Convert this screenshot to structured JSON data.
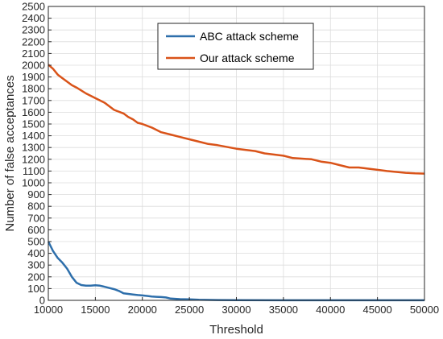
{
  "chart_data": {
    "type": "line",
    "title": "",
    "xlabel": "Threshold",
    "ylabel": "Number of false acceptances",
    "xlim": [
      10000,
      50000
    ],
    "ylim": [
      0,
      2500
    ],
    "xticks": [
      10000,
      15000,
      20000,
      25000,
      30000,
      35000,
      40000,
      45000,
      50000
    ],
    "yticks": [
      0,
      100,
      200,
      300,
      400,
      500,
      600,
      700,
      800,
      900,
      1000,
      1100,
      1200,
      1300,
      1400,
      1500,
      1600,
      1700,
      1800,
      1900,
      2000,
      2100,
      2200,
      2300,
      2400,
      2500
    ],
    "grid": true,
    "legend_position": "top-center",
    "series": [
      {
        "name": "ABC attack scheme",
        "color": "#2e6fab",
        "x": [
          10000,
          10500,
          11000,
          11500,
          12000,
          12500,
          13000,
          13500,
          14000,
          14500,
          15000,
          15500,
          16000,
          16500,
          17000,
          17500,
          18000,
          18500,
          19000,
          19500,
          20000,
          20500,
          21000,
          21500,
          22000,
          22500,
          23000,
          24000,
          25000,
          26000,
          28000,
          30000,
          35000,
          40000,
          45000,
          50000
        ],
        "y": [
          500,
          420,
          360,
          320,
          270,
          200,
          150,
          130,
          125,
          125,
          128,
          125,
          115,
          105,
          95,
          80,
          60,
          55,
          50,
          45,
          42,
          38,
          33,
          30,
          28,
          25,
          15,
          10,
          8,
          5,
          3,
          2,
          1,
          1,
          1,
          1
        ]
      },
      {
        "name": "Our attack scheme",
        "color": "#d95319",
        "x": [
          10000,
          10500,
          11000,
          11500,
          12000,
          12500,
          13000,
          14000,
          15000,
          16000,
          16500,
          17000,
          18000,
          18500,
          19000,
          19500,
          20000,
          21000,
          22000,
          23000,
          24000,
          25000,
          26000,
          27000,
          28000,
          30000,
          32000,
          33000,
          35000,
          36000,
          38000,
          39000,
          40000,
          41000,
          42000,
          43000,
          45000,
          46000,
          48000,
          49000,
          50000
        ],
        "y": [
          2005,
          1970,
          1920,
          1890,
          1860,
          1830,
          1810,
          1760,
          1720,
          1680,
          1650,
          1620,
          1590,
          1560,
          1540,
          1510,
          1500,
          1470,
          1430,
          1410,
          1390,
          1370,
          1350,
          1330,
          1320,
          1290,
          1270,
          1250,
          1230,
          1210,
          1200,
          1180,
          1170,
          1150,
          1130,
          1130,
          1110,
          1100,
          1085,
          1080,
          1078
        ]
      }
    ]
  }
}
